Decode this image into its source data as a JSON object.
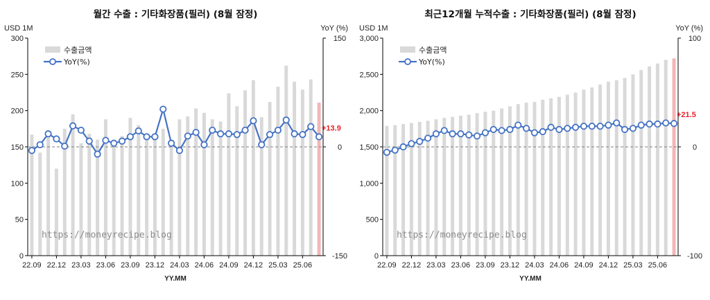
{
  "colors": {
    "bar": "#d9d9d9",
    "bar_last": "#f2b6b6",
    "line": "#4472c4",
    "marker_fill": "#ffffff",
    "zero_line": "#7f7f7f",
    "last_label": "#e8202a"
  },
  "watermark": "https://moneyrecipe.blog",
  "chart_data": [
    {
      "type": "bar+line",
      "title": "월간 수출 : 기타화장품(필러) (8월 잠정)",
      "left_unit": "USD 1M",
      "right_unit": "YoY (%)",
      "xlabel": "YY.MM",
      "ylim": [
        0,
        300
      ],
      "yticks": [
        0,
        50,
        100,
        150,
        200,
        250,
        300
      ],
      "y2lim": [
        -150,
        150
      ],
      "y2ticks": [
        -150,
        0,
        150
      ],
      "legend": {
        "position": "top-left",
        "bar_name": "수출금액",
        "line_name": "YoY(%)"
      },
      "x_tick_labels": [
        "22.09",
        "22.12",
        "23.03",
        "23.06",
        "23.09",
        "23.12",
        "24.03",
        "24.06",
        "24.09",
        "24.12",
        "25.03",
        "25.06"
      ],
      "x_tick_every": 3,
      "categories": [
        "22.09",
        "22.10",
        "22.11",
        "22.12",
        "23.01",
        "23.02",
        "23.03",
        "23.04",
        "23.05",
        "23.06",
        "23.07",
        "23.08",
        "23.09",
        "23.10",
        "23.11",
        "23.12",
        "24.01",
        "24.02",
        "24.03",
        "24.04",
        "24.05",
        "24.06",
        "24.07",
        "24.08",
        "24.09",
        "24.10",
        "24.11",
        "24.12",
        "25.01",
        "25.02",
        "25.03",
        "25.04",
        "25.05",
        "25.06",
        "25.07",
        "25.08"
      ],
      "series": [
        {
          "name": "수출금액",
          "kind": "bar",
          "axis": "left",
          "values": [
            167,
            142,
            165,
            120,
            175,
            195,
            155,
            168,
            160,
            188,
            160,
            165,
            190,
            180,
            168,
            165,
            175,
            160,
            188,
            192,
            203,
            197,
            188,
            185,
            224,
            206,
            228,
            242,
            191,
            212,
            233,
            262,
            240,
            229,
            243,
            211
          ]
        },
        {
          "name": "YoY(%)",
          "kind": "line",
          "axis": "right",
          "values": [
            -5,
            3,
            18,
            11,
            1,
            29,
            23,
            8,
            -10,
            9,
            5,
            8,
            14,
            22,
            14,
            14,
            52,
            5,
            -5,
            15,
            20,
            3,
            23,
            18,
            18,
            17,
            23,
            36,
            3,
            17,
            23,
            37,
            18,
            17,
            28,
            13.9
          ]
        }
      ],
      "last_value_label": "+13.9"
    },
    {
      "type": "bar+line",
      "title": "최근12개월 누적수출 : 기타화장품(필러) (8월 잠정)",
      "left_unit": "USD 1M",
      "right_unit": "YoY (%)",
      "xlabel": "YY.MM",
      "ylim": [
        0,
        3000
      ],
      "yticks": [
        0,
        500,
        1000,
        1500,
        2000,
        2500,
        3000
      ],
      "y2lim": [
        -100,
        100
      ],
      "y2ticks": [
        -100,
        0,
        100
      ],
      "legend": {
        "position": "top-left",
        "bar_name": "수출금액",
        "line_name": "YoY(%)"
      },
      "x_tick_labels": [
        "22.09",
        "22.12",
        "23.03",
        "23.06",
        "23.09",
        "23.12",
        "24.03",
        "24.06",
        "24.09",
        "24.12",
        "25.03",
        "25.06"
      ],
      "x_tick_every": 3,
      "categories": [
        "22.09",
        "22.10",
        "22.11",
        "22.12",
        "23.01",
        "23.02",
        "23.03",
        "23.04",
        "23.05",
        "23.06",
        "23.07",
        "23.08",
        "23.09",
        "23.10",
        "23.11",
        "23.12",
        "24.01",
        "24.02",
        "24.03",
        "24.04",
        "24.05",
        "24.06",
        "24.07",
        "24.08",
        "24.09",
        "24.10",
        "24.11",
        "24.12",
        "25.01",
        "25.02",
        "25.03",
        "25.04",
        "25.05",
        "25.06",
        "25.07",
        "25.08"
      ],
      "series": [
        {
          "name": "수출금액",
          "kind": "bar",
          "axis": "left",
          "values": [
            1790,
            1800,
            1815,
            1830,
            1845,
            1860,
            1880,
            1900,
            1915,
            1930,
            1945,
            1965,
            1985,
            2000,
            2030,
            2060,
            2090,
            2110,
            2120,
            2150,
            2170,
            2190,
            2220,
            2250,
            2290,
            2320,
            2360,
            2400,
            2420,
            2450,
            2500,
            2560,
            2610,
            2650,
            2700,
            2720
          ]
        },
        {
          "name": "YoY(%)",
          "kind": "line",
          "axis": "right",
          "values": [
            -5,
            -3,
            0,
            3,
            5,
            8,
            12,
            15,
            12,
            12,
            11,
            10,
            13,
            16,
            15,
            16,
            20,
            17,
            13,
            14,
            18,
            16,
            17,
            18,
            19,
            19,
            19,
            20,
            22,
            16,
            17,
            20,
            21,
            21,
            22,
            21.5
          ]
        }
      ],
      "last_value_label": "+21.5"
    }
  ]
}
